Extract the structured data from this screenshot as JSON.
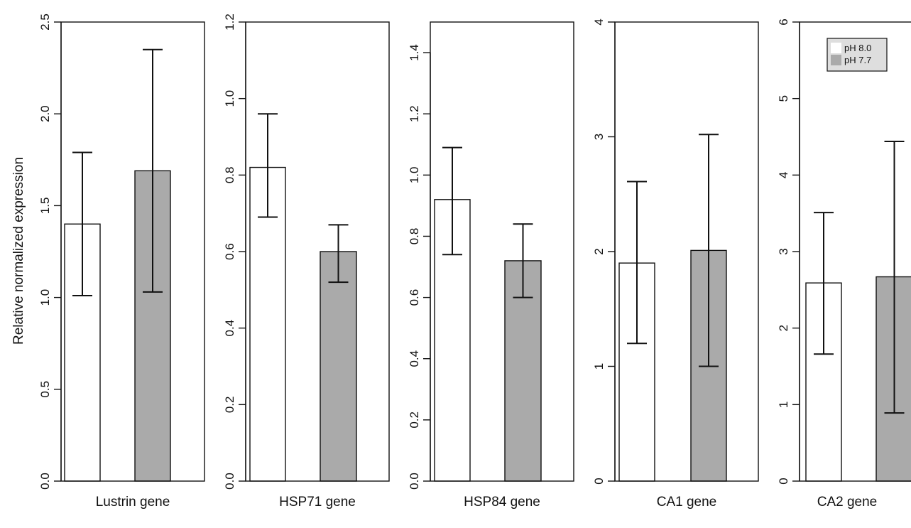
{
  "ylabel": "Relative normalized expression",
  "legend": {
    "placement": "top-right",
    "entries": [
      {
        "label": "pH 8.0",
        "color": "#ffffff"
      },
      {
        "label": "pH 7.7",
        "color": "#aaaaaa"
      }
    ]
  },
  "colors": {
    "ph80": "#ffffff",
    "ph77": "#aaaaaa",
    "stroke": "#111111",
    "legend_bg": "#dedede"
  },
  "chart_data": [
    {
      "type": "bar",
      "xlabel": "Lustrin gene",
      "categories": [
        "pH 8.0",
        "pH 7.7"
      ],
      "values": [
        1.4,
        1.69
      ],
      "error_low": [
        1.01,
        1.03
      ],
      "error_high": [
        1.79,
        2.35
      ],
      "ylim": [
        0,
        2.5
      ],
      "yticks": [
        {
          "v": 0,
          "label": "0.0"
        },
        {
          "v": 0.5,
          "label": "0.5"
        },
        {
          "v": 1.0,
          "label": "1.0"
        },
        {
          "v": 1.5,
          "label": "1.5"
        },
        {
          "v": 2.0,
          "label": "2.0"
        },
        {
          "v": 2.5,
          "label": "2.5"
        }
      ]
    },
    {
      "type": "bar",
      "xlabel": "HSP71 gene",
      "categories": [
        "pH 8.0",
        "pH 7.7"
      ],
      "values": [
        0.82,
        0.6
      ],
      "error_low": [
        0.69,
        0.52
      ],
      "error_high": [
        0.96,
        0.67
      ],
      "ylim": [
        0,
        1.2
      ],
      "yticks": [
        {
          "v": 0,
          "label": "0.0"
        },
        {
          "v": 0.2,
          "label": "0.2"
        },
        {
          "v": 0.4,
          "label": "0.4"
        },
        {
          "v": 0.6,
          "label": "0.6"
        },
        {
          "v": 0.8,
          "label": "0.8"
        },
        {
          "v": 1.0,
          "label": "1.0"
        },
        {
          "v": 1.2,
          "label": "1.2"
        }
      ]
    },
    {
      "type": "bar",
      "xlabel": "HSP84 gene",
      "categories": [
        "pH 8.0",
        "pH 7.7"
      ],
      "values": [
        0.92,
        0.72
      ],
      "error_low": [
        0.74,
        0.6
      ],
      "error_high": [
        1.09,
        0.84
      ],
      "ylim": [
        0,
        1.5
      ],
      "yticks": [
        {
          "v": 0,
          "label": "0.0"
        },
        {
          "v": 0.2,
          "label": "0.2"
        },
        {
          "v": 0.4,
          "label": "0.4"
        },
        {
          "v": 0.6,
          "label": "0.6"
        },
        {
          "v": 0.8,
          "label": "0.8"
        },
        {
          "v": 1.0,
          "label": "1.0"
        },
        {
          "v": 1.2,
          "label": "1.2"
        },
        {
          "v": 1.4,
          "label": "1.4"
        }
      ]
    },
    {
      "type": "bar",
      "xlabel": "CA1 gene",
      "categories": [
        "pH 8.0",
        "pH 7.7"
      ],
      "values": [
        1.9,
        2.01
      ],
      "error_low": [
        1.2,
        1.0
      ],
      "error_high": [
        2.61,
        3.02
      ],
      "ylim": [
        0,
        4
      ],
      "yticks": [
        {
          "v": 0,
          "label": "0"
        },
        {
          "v": 1,
          "label": "1"
        },
        {
          "v": 2,
          "label": "2"
        },
        {
          "v": 3,
          "label": "3"
        },
        {
          "v": 4,
          "label": "4"
        }
      ]
    },
    {
      "type": "bar",
      "xlabel": "CA2 gene",
      "categories": [
        "pH 8.0",
        "pH 7.7"
      ],
      "values": [
        2.59,
        2.67
      ],
      "error_low": [
        1.66,
        0.89
      ],
      "error_high": [
        3.51,
        4.44
      ],
      "ylim": [
        0,
        6
      ],
      "yticks": [
        {
          "v": 0,
          "label": "0"
        },
        {
          "v": 1,
          "label": "1"
        },
        {
          "v": 2,
          "label": "2"
        },
        {
          "v": 3,
          "label": "3"
        },
        {
          "v": 4,
          "label": "4"
        },
        {
          "v": 5,
          "label": "5"
        },
        {
          "v": 6,
          "label": "6"
        }
      ]
    }
  ]
}
